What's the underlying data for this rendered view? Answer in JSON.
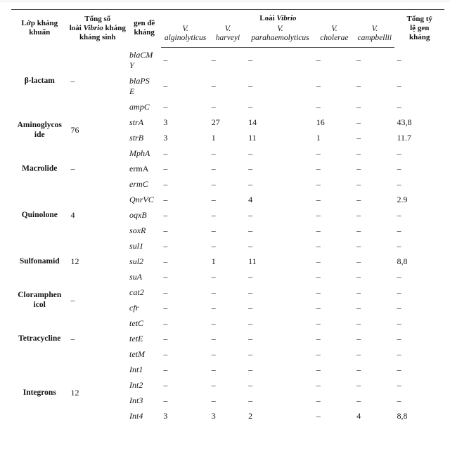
{
  "table": {
    "header": {
      "class_col": "Lớp kháng khuẩn",
      "total_col": {
        "l1": "Tổng số",
        "l2a": "loài",
        "l2b": "Vibrio",
        "l2c": "kháng",
        "l3": "kháng sinh"
      },
      "gene_col": "gen đề kháng",
      "species_group": {
        "a": "Loài",
        "b": "Vibrio"
      },
      "species": [
        {
          "abbr": "V.",
          "name": "alginolyticus"
        },
        {
          "abbr": "V.",
          "name": "harveyi"
        },
        {
          "abbr": "V.",
          "name": "parahaemolyticus"
        },
        {
          "abbr": "V.",
          "name": "cholerae"
        },
        {
          "abbr": "V.",
          "name": "campbellii"
        }
      ],
      "rate_col": "Tổng tỷ lệ gen kháng"
    },
    "groups": [
      {
        "class_label": "β-lactam",
        "species_total": "–",
        "genes": [
          {
            "gene": "blaCMY",
            "v": [
              "–",
              "–",
              "–",
              "–",
              "–"
            ],
            "rate": "–"
          },
          {
            "gene": "blaPSE",
            "v": [
              "–",
              "–",
              "–",
              "–",
              "–"
            ],
            "rate": "–"
          },
          {
            "gene": "ampC",
            "v": [
              "–",
              "–",
              "–",
              "–",
              "–"
            ],
            "rate": "–"
          }
        ]
      },
      {
        "class_label": "Aminoglycoside",
        "species_total": "76",
        "genes": [
          {
            "gene": "strA",
            "v": [
              "3",
              "27",
              "14",
              "16",
              "–"
            ],
            "rate": "43,8"
          },
          {
            "gene": "strB",
            "v": [
              "3",
              "1",
              "11",
              "1",
              "–"
            ],
            "rate": "11.7"
          }
        ]
      },
      {
        "class_label": "Macrolide",
        "species_total": "–",
        "genes": [
          {
            "gene": "MphA",
            "v": [
              "–",
              "–",
              "–",
              "–",
              "–"
            ],
            "rate": "–"
          },
          {
            "gene": "ermA",
            "v": [
              "–",
              "–",
              "–",
              "–",
              "–"
            ],
            "rate": "–"
          },
          {
            "gene": "ermC",
            "v": [
              "–",
              "–",
              "–",
              "–",
              "–"
            ],
            "rate": "–"
          }
        ]
      },
      {
        "class_label": "Quinolone",
        "species_total": "4",
        "genes": [
          {
            "gene": "QnrVC",
            "v": [
              "–",
              "–",
              "4",
              "–",
              "–"
            ],
            "rate": "2.9"
          },
          {
            "gene": "oqxB",
            "v": [
              "–",
              "–",
              "–",
              "–",
              "–"
            ],
            "rate": "–"
          },
          {
            "gene": "soxR",
            "v": [
              "–",
              "–",
              "–",
              "–",
              "–"
            ],
            "rate": "–"
          }
        ]
      },
      {
        "class_label": "Sulfonamid",
        "species_total": "12",
        "genes": [
          {
            "gene": "sul1",
            "v": [
              "–",
              "–",
              "–",
              "–",
              "–"
            ],
            "rate": "–"
          },
          {
            "gene": "sul2",
            "v": [
              "–",
              "1",
              "11",
              "–",
              "–"
            ],
            "rate": "8,8"
          },
          {
            "gene": "suA",
            "v": [
              "–",
              "–",
              "–",
              "–",
              "–"
            ],
            "rate": "–"
          }
        ]
      },
      {
        "class_label": "Cloramphenicol",
        "species_total": "–",
        "genes": [
          {
            "gene": "cat2",
            "v": [
              "–",
              "–",
              "–",
              "–",
              "–"
            ],
            "rate": "–"
          },
          {
            "gene": "cfr",
            "v": [
              "–",
              "–",
              "–",
              "–",
              "–"
            ],
            "rate": "–"
          }
        ]
      },
      {
        "class_label": "Tetracycline",
        "species_total": "–",
        "genes": [
          {
            "gene": "tetC",
            "v": [
              "–",
              "–",
              "–",
              "–",
              "–"
            ],
            "rate": "–"
          },
          {
            "gene": "tetE",
            "v": [
              "–",
              "–",
              "–",
              "–",
              "–"
            ],
            "rate": "–"
          },
          {
            "gene": "tetM",
            "v": [
              "–",
              "–",
              "–",
              "–",
              "–"
            ],
            "rate": "–"
          }
        ]
      },
      {
        "class_label": "Integrons",
        "species_total": "12",
        "genes": [
          {
            "gene": "Int1",
            "v": [
              "–",
              "–",
              "–",
              "–",
              "–"
            ],
            "rate": "–"
          },
          {
            "gene": "Int2",
            "v": [
              "–",
              "–",
              "–",
              "–",
              "–"
            ],
            "rate": "–"
          },
          {
            "gene": "Int3",
            "v": [
              "–",
              "–",
              "–",
              "–",
              "–"
            ],
            "rate": "–"
          },
          {
            "gene": "Int4",
            "v": [
              "3",
              "3",
              "2",
              "–",
              "4"
            ],
            "rate": "8,8"
          }
        ]
      }
    ]
  }
}
